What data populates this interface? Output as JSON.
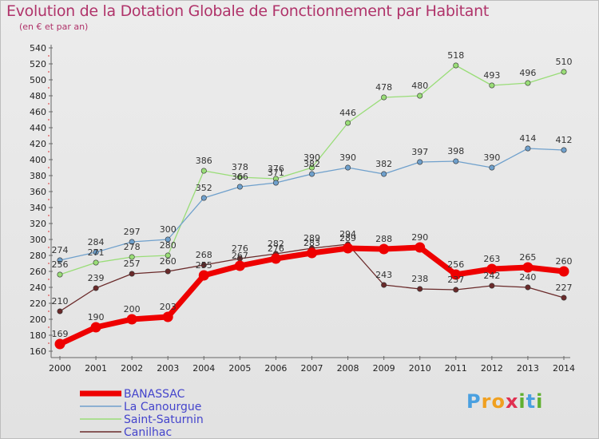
{
  "chart_data": {
    "type": "line",
    "title": "Evolution de la Dotation Globale de Fonctionnement par Habitant",
    "subtitle": "(en € et par an)",
    "xlabel": "",
    "ylabel": "",
    "categories": [
      "2000",
      "2001",
      "2002",
      "2003",
      "2004",
      "2005",
      "2006",
      "2007",
      "2008",
      "2009",
      "2010",
      "2011",
      "2012",
      "2013",
      "2014"
    ],
    "ylim": [
      160,
      540
    ],
    "ytick_step": 20,
    "grid": false,
    "legend_position": "bottom-left",
    "series": [
      {
        "name": "BANASSAC",
        "color": "#ee0000",
        "values": [
          169,
          190,
          200,
          203,
          255,
          267,
          276,
          283,
          289,
          288,
          290,
          256,
          263,
          265,
          260
        ]
      },
      {
        "name": "La Canourgue",
        "color": "#6fa0cc",
        "values": [
          274,
          284,
          297,
          300,
          352,
          366,
          371,
          382,
          390,
          382,
          397,
          398,
          390,
          414,
          412
        ]
      },
      {
        "name": "Saint-Saturnin",
        "color": "#99dd77",
        "values": [
          256,
          271,
          278,
          280,
          386,
          378,
          376,
          390,
          446,
          478,
          480,
          518,
          493,
          496,
          510
        ]
      },
      {
        "name": "Canilhac",
        "color": "#6a2a2a",
        "values": [
          210,
          239,
          257,
          260,
          268,
          276,
          282,
          289,
          294,
          243,
          238,
          237,
          242,
          240,
          227
        ]
      }
    ]
  },
  "logo": {
    "letters": [
      "P",
      "r",
      "o",
      "x",
      "i",
      "t",
      "i"
    ],
    "colors": [
      "#4aa0e0",
      "#f0a020",
      "#f0a020",
      "#e03050",
      "#60b030",
      "#4aa0e0",
      "#60b030"
    ]
  }
}
